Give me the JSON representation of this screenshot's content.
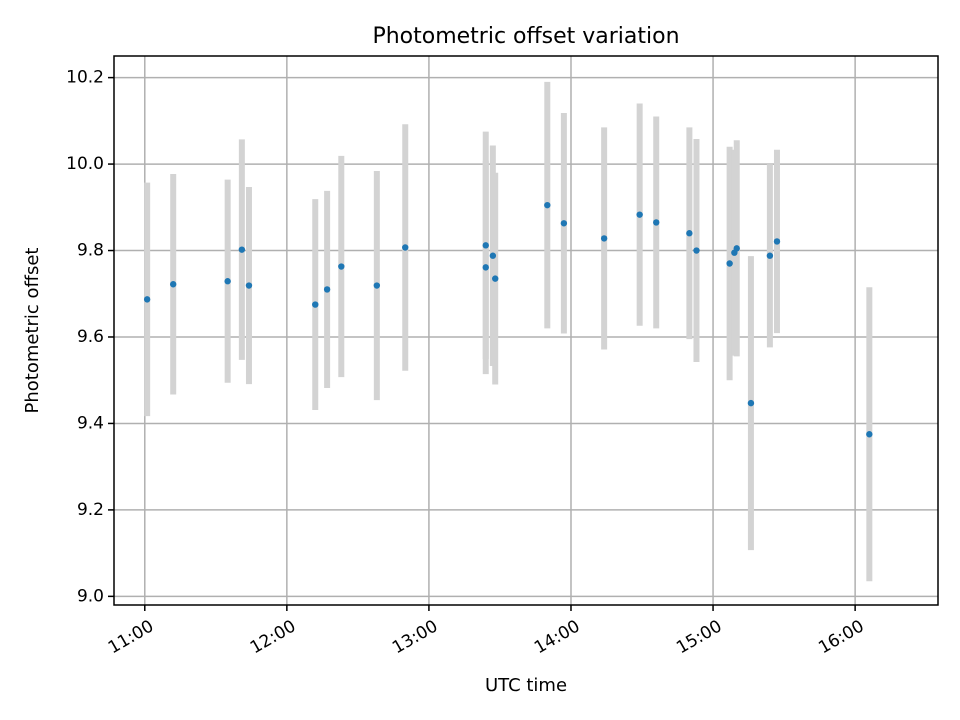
{
  "chart_data": {
    "type": "scatter",
    "title": "Photometric offset variation",
    "xlabel": "UTC time",
    "ylabel": "Photometric offset",
    "xlim": [
      "10:47",
      "16:35"
    ],
    "ylim": [
      8.98,
      10.25
    ],
    "x_ticks": [
      "11:00",
      "12:00",
      "13:00",
      "14:00",
      "15:00",
      "16:00"
    ],
    "y_ticks": [
      9.0,
      9.2,
      9.4,
      9.6,
      9.8,
      10.0,
      10.2
    ],
    "grid": true,
    "colors": {
      "point": "#1f77b4",
      "errorbar": "#d3d3d3",
      "grid": "#b0b0b0"
    },
    "points": [
      {
        "x": "11:01",
        "y": 9.687,
        "err": 0.27
      },
      {
        "x": "11:12",
        "y": 9.722,
        "err": 0.255
      },
      {
        "x": "11:35",
        "y": 9.729,
        "err": 0.235
      },
      {
        "x": "11:41",
        "y": 9.802,
        "err": 0.255
      },
      {
        "x": "11:44",
        "y": 9.719,
        "err": 0.228
      },
      {
        "x": "12:12",
        "y": 9.675,
        "err": 0.244
      },
      {
        "x": "12:17",
        "y": 9.71,
        "err": 0.228
      },
      {
        "x": "12:23",
        "y": 9.763,
        "err": 0.256
      },
      {
        "x": "12:38",
        "y": 9.719,
        "err": 0.265
      },
      {
        "x": "12:50",
        "y": 9.807,
        "err": 0.285
      },
      {
        "x": "13:24",
        "y": 9.812,
        "err": 0.263
      },
      {
        "x": "13:24",
        "y": 9.761,
        "err": 0.247
      },
      {
        "x": "13:27",
        "y": 9.788,
        "err": 0.255
      },
      {
        "x": "13:28",
        "y": 9.735,
        "err": 0.245
      },
      {
        "x": "13:50",
        "y": 9.905,
        "err": 0.285
      },
      {
        "x": "13:57",
        "y": 9.863,
        "err": 0.255
      },
      {
        "x": "14:14",
        "y": 9.828,
        "err": 0.257
      },
      {
        "x": "14:29",
        "y": 9.883,
        "err": 0.257
      },
      {
        "x": "14:36",
        "y": 9.865,
        "err": 0.245
      },
      {
        "x": "14:50",
        "y": 9.84,
        "err": 0.245
      },
      {
        "x": "14:53",
        "y": 9.8,
        "err": 0.258
      },
      {
        "x": "15:07",
        "y": 9.77,
        "err": 0.27
      },
      {
        "x": "15:09",
        "y": 9.795,
        "err": 0.238
      },
      {
        "x": "15:10",
        "y": 9.805,
        "err": 0.25
      },
      {
        "x": "15:16",
        "y": 9.447,
        "err": 0.34
      },
      {
        "x": "15:24",
        "y": 9.788,
        "err": 0.212
      },
      {
        "x": "15:27",
        "y": 9.821,
        "err": 0.212
      },
      {
        "x": "16:06",
        "y": 9.375,
        "err": 0.34
      }
    ]
  }
}
